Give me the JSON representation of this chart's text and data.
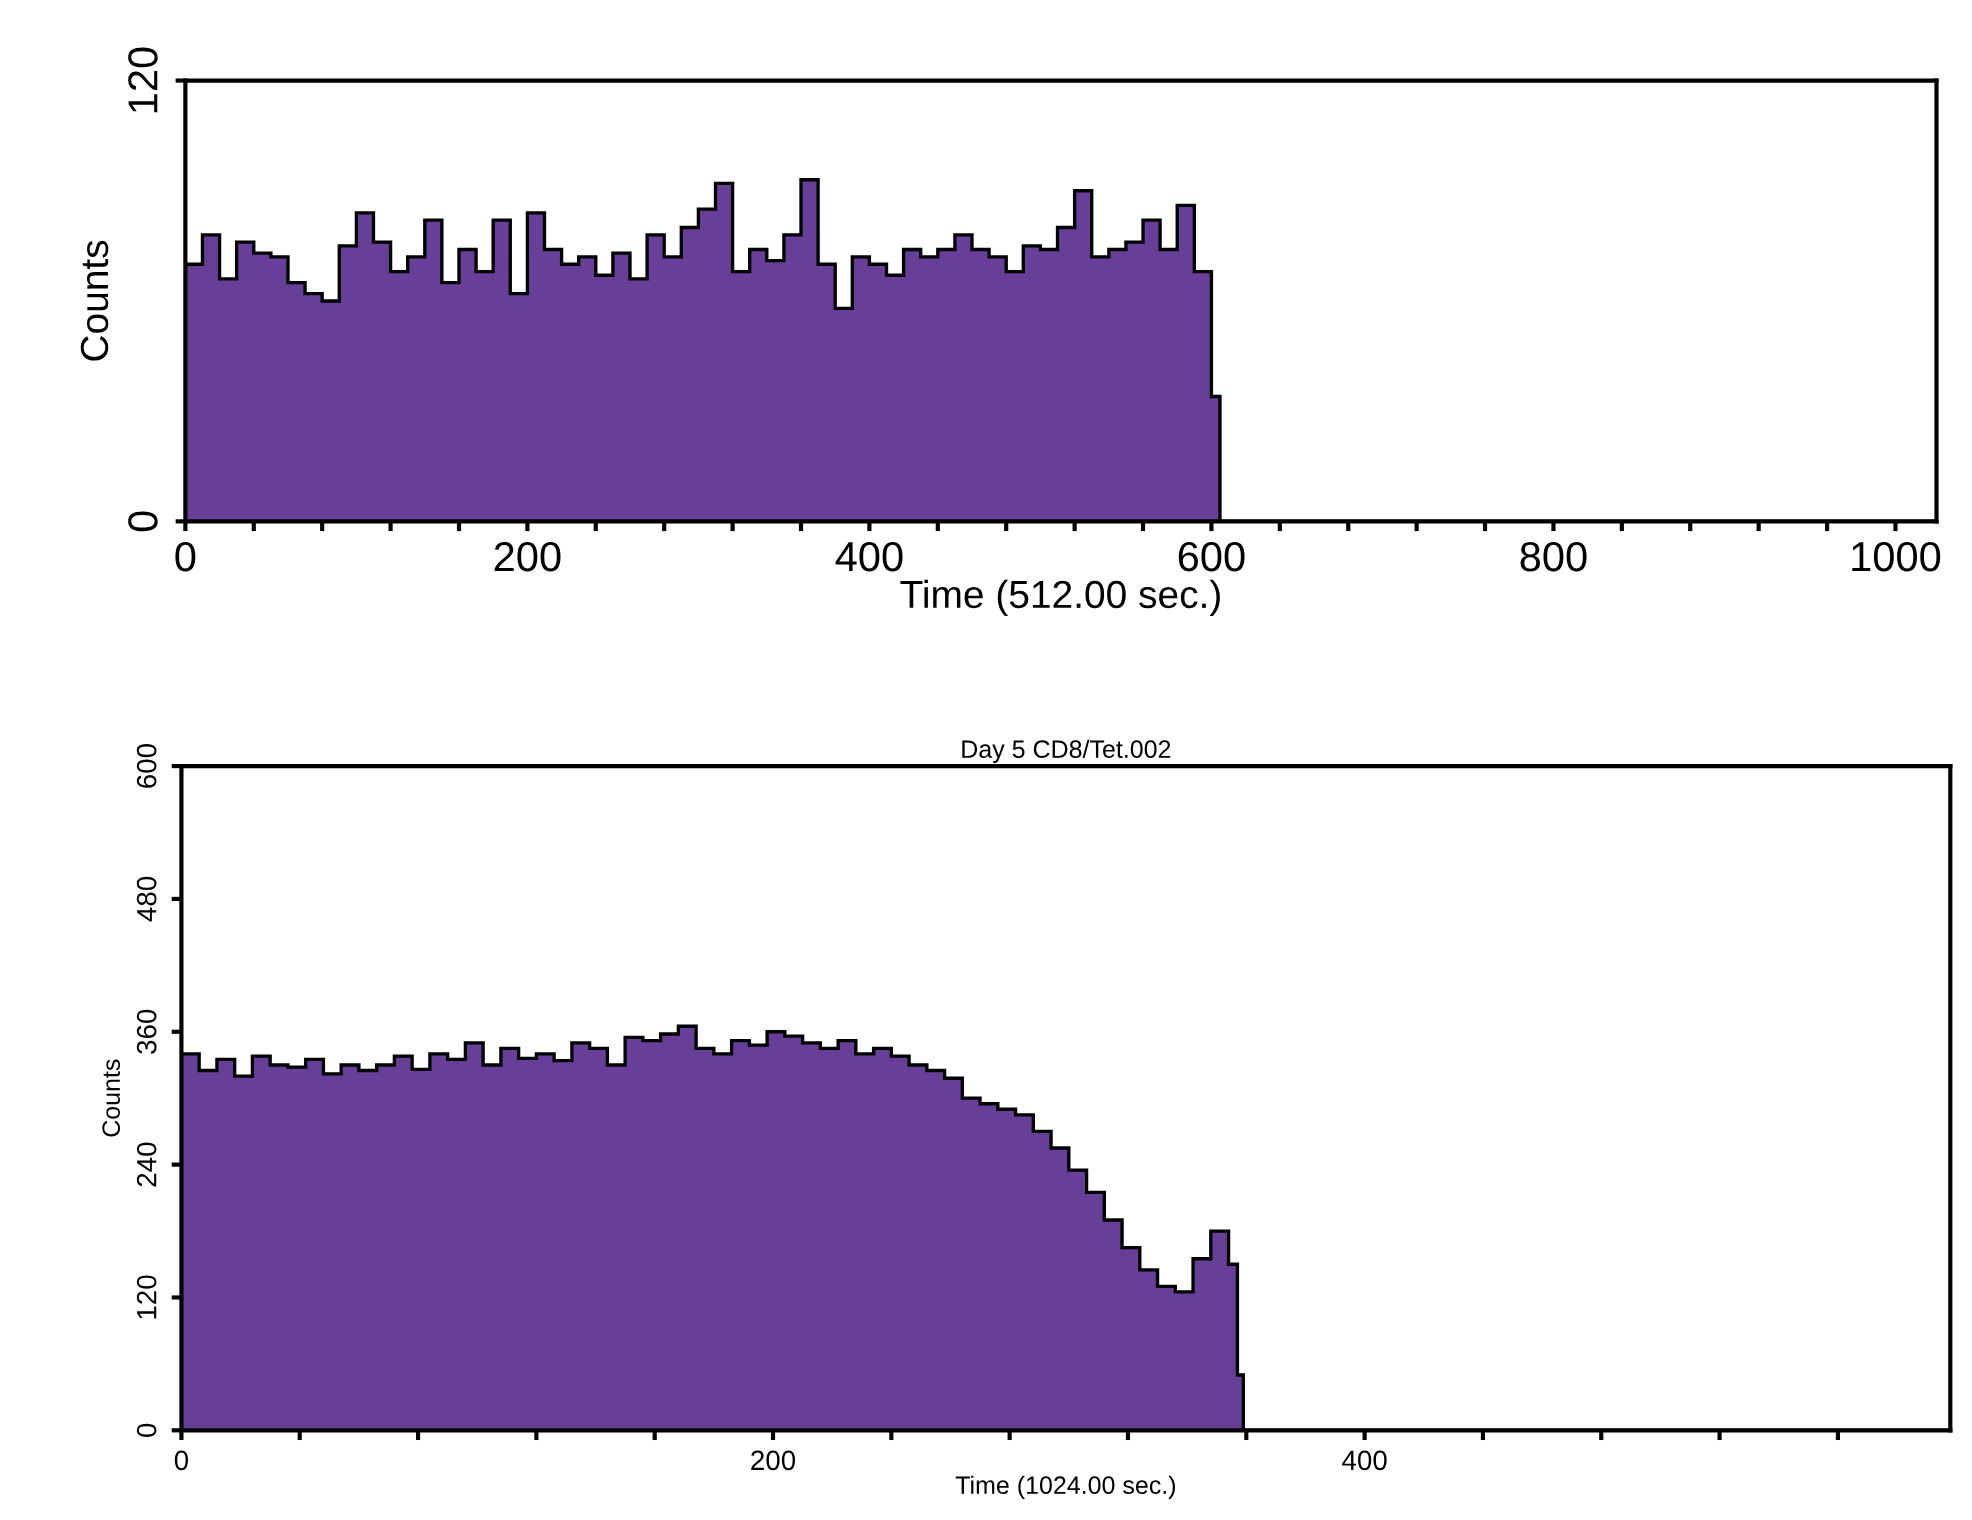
{
  "chart_data": [
    {
      "type": "histogram",
      "xlabel": "Time (512.00 sec.)",
      "ylabel": "Counts",
      "color": "#673f98",
      "bins": [
        0,
        10,
        20,
        30,
        40,
        50,
        60,
        70,
        80,
        90,
        100,
        110,
        120,
        130,
        140,
        150,
        160,
        170,
        180,
        190,
        200,
        210,
        220,
        230,
        240,
        250,
        260,
        270,
        280,
        290,
        300,
        310,
        320,
        330,
        340,
        350,
        360,
        370,
        380,
        390,
        400,
        410,
        420,
        430,
        440,
        450,
        460,
        470,
        480,
        490,
        500,
        510,
        520,
        530,
        540,
        550,
        560,
        570,
        580,
        590,
        600,
        605,
        1024
      ],
      "values": [
        70,
        78,
        66,
        76,
        73,
        72,
        65,
        62,
        60,
        75,
        84,
        76,
        68,
        72,
        82,
        65,
        74,
        68,
        82,
        62,
        84,
        74,
        70,
        72,
        67,
        73,
        66,
        78,
        72,
        80,
        85,
        92,
        68,
        74,
        71,
        78,
        93,
        70,
        58,
        72,
        70,
        67,
        74,
        72,
        74,
        78,
        74,
        72,
        68,
        75,
        74,
        80,
        90,
        72,
        74,
        76,
        82,
        74,
        86,
        68,
        34,
        0
      ],
      "xlim": [
        0,
        1024
      ],
      "ylim": [
        0,
        120
      ],
      "yticks": [
        0,
        120
      ],
      "xticks": [
        0,
        {
          "value": 40,
          "label": null
        },
        {
          "value": 80,
          "label": null
        },
        {
          "value": 120,
          "label": null
        },
        {
          "value": 160,
          "label": null
        },
        200,
        {
          "value": 240,
          "label": null
        },
        {
          "value": 280,
          "label": null
        },
        {
          "value": 320,
          "label": null
        },
        {
          "value": 360,
          "label": null
        },
        400,
        {
          "value": 440,
          "label": null
        },
        {
          "value": 480,
          "label": null
        },
        {
          "value": 520,
          "label": null
        },
        {
          "value": 560,
          "label": null
        },
        600,
        {
          "value": 640,
          "label": null
        },
        {
          "value": 680,
          "label": null
        },
        {
          "value": 720,
          "label": null
        },
        {
          "value": 760,
          "label": null
        },
        800,
        {
          "value": 840,
          "label": null
        },
        {
          "value": 880,
          "label": null
        },
        {
          "value": 920,
          "label": null
        },
        {
          "value": 960,
          "label": null
        },
        1000
      ],
      "grid": false
    },
    {
      "type": "histogram",
      "title": "Day 5 CD8/Tet.002",
      "xlabel": "Time (1024.00 sec.)",
      "ylabel": "Counts",
      "color": "#673f98",
      "bins": [
        0,
        6,
        12,
        18,
        24,
        30,
        36,
        42,
        48,
        54,
        60,
        66,
        72,
        78,
        84,
        90,
        96,
        102,
        108,
        114,
        120,
        126,
        132,
        138,
        144,
        150,
        156,
        162,
        168,
        174,
        180,
        186,
        192,
        198,
        204,
        210,
        216,
        222,
        228,
        234,
        240,
        246,
        252,
        258,
        264,
        270,
        276,
        282,
        288,
        294,
        300,
        306,
        312,
        318,
        324,
        330,
        336,
        342,
        348,
        354,
        357,
        359,
        598
      ],
      "values": [
        340,
        325,
        335,
        320,
        338,
        330,
        328,
        335,
        322,
        330,
        325,
        330,
        338,
        326,
        340,
        335,
        350,
        330,
        345,
        336,
        340,
        334,
        350,
        345,
        330,
        355,
        352,
        358,
        365,
        345,
        340,
        352,
        348,
        360,
        356,
        350,
        345,
        352,
        340,
        345,
        338,
        330,
        325,
        318,
        300,
        295,
        290,
        285,
        270,
        255,
        235,
        215,
        190,
        165,
        145,
        130,
        125,
        155,
        180,
        150,
        50,
        0
      ],
      "xlim": [
        0,
        598
      ],
      "ylim": [
        0,
        600
      ],
      "yticks": [
        0,
        120,
        240,
        360,
        480,
        600
      ],
      "xticks": [
        0,
        {
          "value": 40,
          "label": null
        },
        {
          "value": 80,
          "label": null
        },
        {
          "value": 120,
          "label": null
        },
        {
          "value": 160,
          "label": null
        },
        200,
        {
          "value": 240,
          "label": null
        },
        {
          "value": 280,
          "label": null
        },
        {
          "value": 320,
          "label": null
        },
        {
          "value": 360,
          "label": null
        },
        400,
        {
          "value": 440,
          "label": null
        },
        {
          "value": 480,
          "label": null
        },
        {
          "value": 520,
          "label": null
        },
        {
          "value": 560,
          "label": null
        }
      ],
      "grid": false
    }
  ]
}
